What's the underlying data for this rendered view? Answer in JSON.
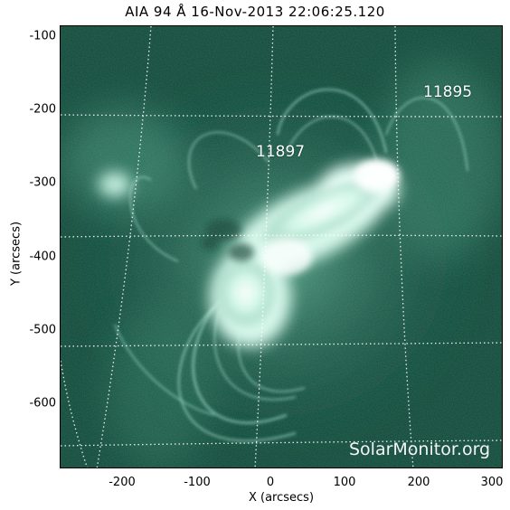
{
  "title": "AIA 94 Å 16-Nov-2013 22:06:25.120",
  "axes": {
    "xlabel": "X (arcsecs)",
    "ylabel": "Y (arcsecs)",
    "xticks": [
      "-200",
      "-100",
      "0",
      "100",
      "200",
      "300"
    ],
    "yticks": [
      "-100",
      "-200",
      "-300",
      "-400",
      "-500",
      "-600"
    ]
  },
  "regions": [
    {
      "number": "11897"
    },
    {
      "number": "11895"
    }
  ],
  "watermark": "SolarMonitor.org",
  "colors": {
    "background": "#0d4a38",
    "emission": "#eafff6",
    "grid": "#ffffff"
  }
}
